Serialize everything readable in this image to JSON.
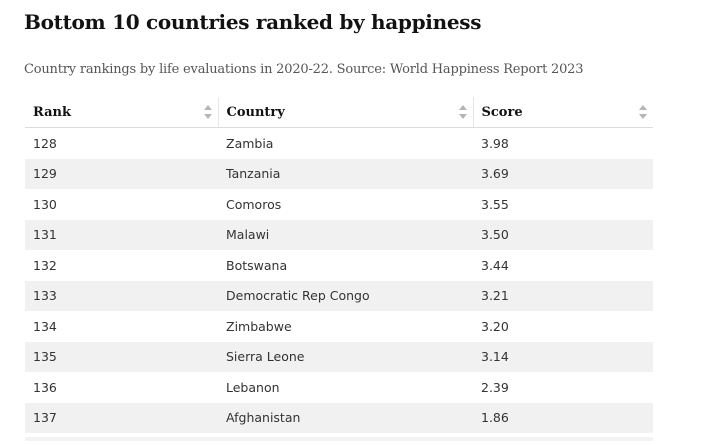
{
  "page": {
    "title": "Bottom 10 countries ranked by happiness",
    "subtitle": "Country rankings by life evaluations in 2020-22. Source: World Happiness Report 2023"
  },
  "icons": {
    "sort": "sort-icon"
  },
  "chart_data": {
    "type": "table",
    "title": "Bottom 10 countries ranked by happiness",
    "subtitle": "Country rankings by life evaluations in 2020-22. Source: World Happiness Report 2023",
    "columns": [
      "Rank",
      "Country",
      "Score"
    ],
    "rows": [
      [
        "128",
        "Zambia",
        "3.98"
      ],
      [
        "129",
        "Tanzania",
        "3.69"
      ],
      [
        "130",
        "Comoros",
        "3.55"
      ],
      [
        "131",
        "Malawi",
        "3.50"
      ],
      [
        "132",
        "Botswana",
        "3.44"
      ],
      [
        "133",
        "Democratic Rep Congo",
        "3.21"
      ],
      [
        "134",
        "Zimbabwe",
        "3.20"
      ],
      [
        "135",
        "Sierra Leone",
        "3.14"
      ],
      [
        "136",
        "Lebanon",
        "2.39"
      ],
      [
        "137",
        "Afghanistan",
        "1.86"
      ]
    ]
  }
}
